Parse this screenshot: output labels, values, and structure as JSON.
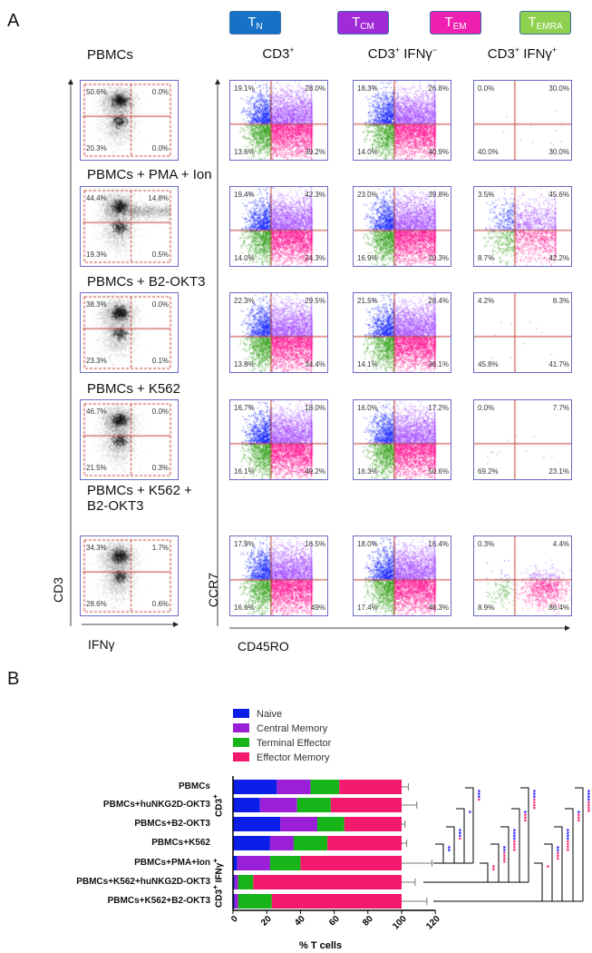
{
  "panel_a": {
    "letter": "A",
    "legend_boxes": [
      {
        "main": "T",
        "sub": "N",
        "color": "#1572c4"
      },
      {
        "main": "T",
        "sub": "CM",
        "color": "#a12bd6"
      },
      {
        "main": "T",
        "sub": "EM",
        "color": "#ee1fb1"
      },
      {
        "main": "T",
        "sub": "EMRA",
        "color": "#8fd14f"
      }
    ],
    "column_headers": [
      {
        "main": "CD3",
        "sup": "+",
        "rest": ""
      },
      {
        "main": "CD3",
        "sup": "+",
        "rest": " IFNγ",
        "sup2": "−"
      },
      {
        "main": "CD3",
        "sup": "+",
        "rest": " IFNγ",
        "sup2": "+"
      }
    ],
    "axes": {
      "left_y": "CD3",
      "left_x": "IFNγ",
      "right_y": "CCR7",
      "right_x": "CD45RO"
    },
    "rows": [
      {
        "label": "PBMCs",
        "cd3_ifng": [
          "50.6%",
          "0.0%",
          "20.3%",
          "0.0%"
        ],
        "memory": [
          [
            "19.1%",
            "28.0%",
            "13.6%",
            "39.2%"
          ],
          [
            "18.3%",
            "26.8%",
            "14.0%",
            "40.9%"
          ],
          [
            "0.0%",
            "30.0%",
            "40.0%",
            "30.0%"
          ]
        ]
      },
      {
        "label": "PBMCs + PMA + Ion",
        "cd3_ifng": [
          "44.4%",
          "14.8%",
          "19.3%",
          "0.5%"
        ],
        "memory": [
          [
            "19.4%",
            "42.3%",
            "14.0%",
            "24.3%"
          ],
          [
            "23.0%",
            "39.8%",
            "16.9%",
            "20.3%"
          ],
          [
            "3.5%",
            "45.6%",
            "8.7%",
            "42.2%"
          ]
        ]
      },
      {
        "label": "PBMCs + B2-OKT3",
        "cd3_ifng": [
          "38.3%",
          "0.0%",
          "23.3%",
          "0.1%"
        ],
        "memory": [
          [
            "22.3%",
            "29.5%",
            "13.8%",
            "34.4%"
          ],
          [
            "21.5%",
            "28.4%",
            "14.1%",
            "36.1%"
          ],
          [
            "4.2%",
            "8.3%",
            "45.8%",
            "41.7%"
          ]
        ]
      },
      {
        "label": "PBMCs + K562",
        "cd3_ifng": [
          "46.7%",
          "0.0%",
          "21.5%",
          "0.3%"
        ],
        "memory": [
          [
            "16.7%",
            "18.0%",
            "16.1%",
            "49.2%"
          ],
          [
            "16.0%",
            "17.2%",
            "16.3%",
            "50.6%"
          ],
          [
            "0.0%",
            "7.7%",
            "69.2%",
            "23.1%"
          ]
        ]
      },
      {
        "label": "PBMCs + K562 + B2-OKT3",
        "cd3_ifng": [
          "34.3%",
          "1.7%",
          "28.6%",
          "0.6%"
        ],
        "memory": [
          [
            "17.9%",
            "16.5%",
            "16.6%",
            "49%"
          ],
          [
            "18.0%",
            "16.4%",
            "17.4%",
            "48.3%"
          ],
          [
            "0.3%",
            "4.4%",
            "8.9%",
            "86.4%"
          ]
        ]
      }
    ]
  },
  "chart_data": {
    "type": "bar",
    "orientation": "horizontal",
    "stacked": true,
    "panel_letter": "B",
    "categories": [
      "PBMCs",
      "PBMCs+huNKG2D-OKT3",
      "PBMCs+B2-OKT3",
      "PBMCs+K562",
      "PBMCs+PMA+Ion",
      "PBMCs+K562+huNKG2D-OKT3",
      "PBMCs+K562+B2-OKT3"
    ],
    "group_labels": [
      {
        "text": "CD3",
        "sup": "+"
      },
      {
        "text": "CD3",
        "sup": "+",
        "rest": " IFNγ",
        "sup2": "+"
      }
    ],
    "series": [
      {
        "name": "Naive",
        "color": "#0b1ee8",
        "values": [
          26,
          16,
          28,
          22,
          2.5,
          1,
          1
        ]
      },
      {
        "name": "Central Memory",
        "color": "#9b1fd6",
        "values": [
          20,
          22,
          22,
          14,
          19.5,
          2,
          2
        ]
      },
      {
        "name": "Terminal Effector",
        "color": "#17b51a",
        "values": [
          17,
          20,
          16,
          20,
          18,
          9,
          20
        ]
      },
      {
        "name": "Effector Memory",
        "color": "#f2196f",
        "values": [
          37,
          42,
          34,
          44,
          60,
          88,
          77
        ]
      }
    ],
    "total_error": [
      4,
      9,
      2,
      3,
      18,
      8,
      15
    ],
    "xlabel": "% T cells",
    "xlim": [
      0,
      120
    ],
    "xticks": [
      "0",
      "20",
      "40",
      "60",
      "80",
      "100",
      "120"
    ],
    "legend": "top",
    "significance": [
      {
        "from": 4,
        "brackets": [
          {
            "to": 3,
            "blue": "**",
            "pink": ""
          },
          {
            "to": 2,
            "blue": "***",
            "pink": "*"
          },
          {
            "to": 1,
            "blue": "*",
            "pink": ""
          },
          {
            "to": 0,
            "blue": "***",
            "pink": "*"
          }
        ]
      },
      {
        "from": 5,
        "brackets": [
          {
            "to": 4,
            "blue": "",
            "pink": "**"
          },
          {
            "to": 3,
            "blue": "**",
            "pink": "****"
          },
          {
            "to": 2,
            "blue": "****",
            "pink": "****"
          },
          {
            "to": 1,
            "blue": "*",
            "pink": "***"
          },
          {
            "to": 0,
            "blue": "***",
            "pink": "****"
          }
        ]
      },
      {
        "from": 6,
        "brackets": [
          {
            "to": 4,
            "blue": "",
            "pink": "*"
          },
          {
            "to": 3,
            "blue": "**",
            "pink": "***"
          },
          {
            "to": 2,
            "blue": "****",
            "pink": "****"
          },
          {
            "to": 1,
            "blue": "*",
            "pink": "***"
          },
          {
            "to": 0,
            "blue": "****",
            "pink": "****"
          }
        ]
      }
    ]
  }
}
